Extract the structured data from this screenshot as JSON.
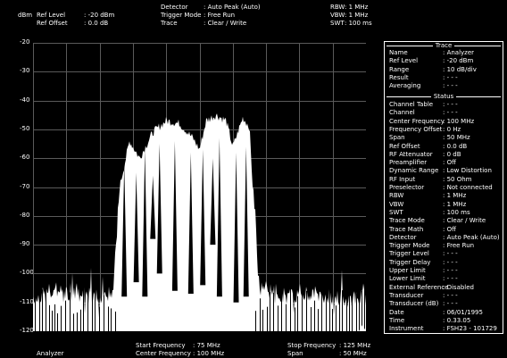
{
  "header": {
    "unit": "dBm",
    "ref_level_label": "Ref Level",
    "ref_level_value": ": -20  dBm",
    "ref_offset_label": "Ref Offset",
    "ref_offset_value": ":  0.0 dB",
    "detector_label": "Detector",
    "detector_value": ": Auto Peak (Auto)",
    "trigger_label": "Trigger Mode",
    "trigger_value": ": Free Run",
    "trace_label": "Trace",
    "trace_value": ": Clear / Write",
    "rbw_label": "RBW",
    "rbw_value": ":   1 MHz",
    "vbw_label": "VBW",
    "vbw_value": ":   1 MHz",
    "swt_label": "SWT",
    "swt_value": ": 100 ms"
  },
  "y_axis": {
    "ticks": [
      "-20",
      "-30",
      "-40",
      "-50",
      "-60",
      "-70",
      "-80",
      "-90",
      "-100",
      "-110",
      "-120"
    ]
  },
  "footer": {
    "mode": "Analyzer",
    "start_label": "Start Frequency",
    "start_value": ":  75 MHz",
    "center_label": "Center Frequency",
    "center_value": ": 100 MHz",
    "stop_label": "Stop Frequency",
    "stop_value": ": 125 MHz",
    "span_label": "Span",
    "span_value": ":   50 MHz"
  },
  "side_panel": {
    "trace_title": "Trace",
    "trace_rows": [
      {
        "label": "Name",
        "value": ": Analyzer"
      },
      {
        "label": "Ref Level",
        "value": ": -20   dBm"
      },
      {
        "label": "Range",
        "value": ": 10 dB/div"
      },
      {
        "label": "Result",
        "value": ": - - -"
      },
      {
        "label": "Averaging",
        "value": ": - - -"
      }
    ],
    "status_title": "Status",
    "status_rows": [
      {
        "label": "Channel Table",
        "value": ": - - -"
      },
      {
        "label": "Channel",
        "value": ": - - -"
      },
      {
        "label": "Center Frequency",
        "value": ": 100   MHz"
      },
      {
        "label": "Frequency Offset",
        "value": ":    0   Hz"
      },
      {
        "label": "Span",
        "value": ":   50   MHz"
      },
      {
        "label": "Ref Offset",
        "value": ":    0.0 dB"
      },
      {
        "label": "RF Attenuator",
        "value": ":    0   dB"
      },
      {
        "label": "Preamplifier",
        "value": ": Off"
      },
      {
        "label": "Dynamic Range",
        "value": ": Low Distortion"
      },
      {
        "label": "RF Input",
        "value": ":   50   Ohm"
      },
      {
        "label": "Preselector",
        "value": ": Not connected"
      },
      {
        "label": "RBW",
        "value": ":    1   MHz"
      },
      {
        "label": "VBW",
        "value": ":    1   MHz"
      },
      {
        "label": "SWT",
        "value": ": 100   ms"
      },
      {
        "label": "Trace Mode",
        "value": ": Clear / Write"
      },
      {
        "label": "Trace Math",
        "value": ":   Off"
      },
      {
        "label": "Detector",
        "value": ": Auto Peak (Auto)"
      },
      {
        "label": "Trigger Mode",
        "value": ": Free Run"
      },
      {
        "label": "Trigger Level",
        "value": ": - - -"
      },
      {
        "label": "Trigger Delay",
        "value": ": - - -"
      },
      {
        "label": "Upper Limit",
        "value": ": - - -"
      },
      {
        "label": "Lower Limit",
        "value": ": - - -"
      },
      {
        "label": "External Reference",
        "value": ": Disabled"
      },
      {
        "label": "Transducer",
        "value": ": - - -"
      },
      {
        "label": "Transducer (dB)",
        "value": ": - - -"
      },
      {
        "label": "Date",
        "value": ": 06/01/1995"
      },
      {
        "label": "Time",
        "value": ": 0.33.05"
      },
      {
        "label": "Instrument",
        "value": ": FSH23 - 101729"
      }
    ]
  },
  "chart_data": {
    "type": "line",
    "ylim": [
      -120,
      -20
    ],
    "ylabel": "dBm",
    "x_range_mhz": [
      75,
      125
    ],
    "series": [
      {
        "x": [
          75,
          79,
          85,
          87,
          88,
          89.5,
          91,
          93,
          95,
          97,
          99,
          100,
          101,
          102.5,
          104,
          105,
          106.5,
          107.5,
          108,
          109,
          111,
          113,
          117,
          121,
          125
        ],
        "values": [
          -108,
          -107,
          -108,
          -107,
          -70,
          -54,
          -60,
          -51,
          -47,
          -48,
          -53,
          -57,
          -47,
          -45,
          -47,
          -56,
          -46,
          -49,
          -70,
          -104,
          -106,
          -108,
          -107,
          -109,
          -108
        ]
      }
    ]
  },
  "colors": {
    "background": "#000000",
    "grid": "#5a5a5a",
    "trace": "#ffffff"
  }
}
